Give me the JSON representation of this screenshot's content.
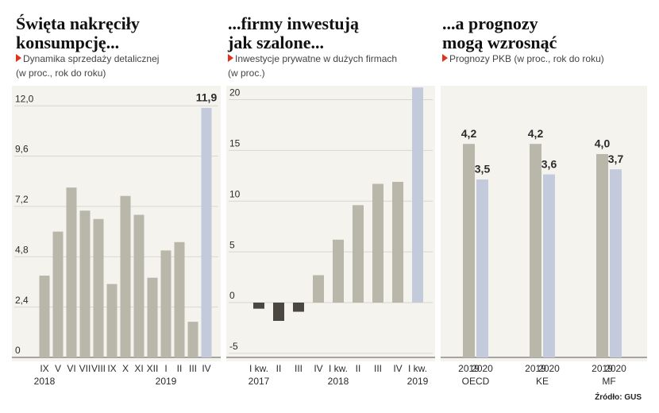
{
  "chart_data": [
    {
      "type": "bar",
      "title": "Święta nakręciły konsumpcję...",
      "subtitle": "Dynamika sprzedaży detalicznej",
      "unit": "(w proc., rok do roku)",
      "categories": [
        "IX",
        "V",
        "VI",
        "VII",
        "VIII",
        "IX",
        "X",
        "XI",
        "XII",
        "I",
        "II",
        "III",
        "IV"
      ],
      "years": [
        "2018",
        null,
        null,
        null,
        null,
        null,
        null,
        null,
        null,
        "2019",
        null,
        null,
        null
      ],
      "values": [
        3.9,
        6.0,
        8.1,
        7.0,
        6.6,
        3.5,
        7.7,
        6.8,
        3.8,
        5.1,
        5.5,
        1.7,
        11.9
      ],
      "value_labels": [
        null,
        null,
        null,
        null,
        null,
        null,
        null,
        null,
        null,
        null,
        null,
        null,
        "11,9"
      ],
      "colors": [
        "#b8b7a9",
        "#b8b7a9",
        "#b8b7a9",
        "#b8b7a9",
        "#b8b7a9",
        "#b8b7a9",
        "#b8b7a9",
        "#b8b7a9",
        "#b8b7a9",
        "#b8b7a9",
        "#b8b7a9",
        "#b8b7a9",
        "#c3cadc"
      ],
      "ylim": [
        0,
        12.5
      ],
      "yticks": [
        0,
        {
          "value": 2.4,
          "label": "2,4"
        },
        {
          "value": 4.8,
          "label": "4,8"
        },
        {
          "value": 7.2,
          "label": "7,2"
        },
        {
          "value": 9.6,
          "label": "9,6"
        },
        {
          "value": 12.0,
          "label": "12,0"
        }
      ],
      "grid": true
    },
    {
      "type": "bar",
      "title": "...firmy inwestują jak szalone...",
      "subtitle": "Inwestycje prywatne w dużych firmach",
      "unit": "(w proc.)",
      "categories": [
        "I kw.",
        "II",
        "III",
        "IV",
        "I kw.",
        "II",
        "III",
        "IV",
        "I kw."
      ],
      "years": [
        "2017",
        null,
        null,
        null,
        "2018",
        null,
        null,
        null,
        "2019"
      ],
      "values": [
        -0.6,
        -1.8,
        -0.9,
        2.7,
        6.2,
        9.6,
        11.7,
        11.9,
        21.2
      ],
      "colors": [
        "#4a4640",
        "#4a4640",
        "#4a4640",
        "#b8b7a9",
        "#b8b7a9",
        "#b8b7a9",
        "#b8b7a9",
        "#b8b7a9",
        "#c3cadc"
      ],
      "ylim": [
        -5.4,
        21.6
      ],
      "yticks": [
        -5,
        0,
        5,
        10,
        15,
        20
      ],
      "grid": true
    },
    {
      "type": "bar",
      "title": "...a prognozy mogą wzrosnąć",
      "subtitle": "Prognozy PKB (w proc., rok do roku)",
      "categories": [
        "OECD",
        "KE",
        "MF"
      ],
      "series": [
        {
          "name": "2019",
          "color": "#b8b7a9",
          "values": [
            4.2,
            4.2,
            4.0
          ],
          "value_labels": [
            "4,2",
            "4,2",
            "4,0"
          ]
        },
        {
          "name": "2020",
          "color": "#c3cadc",
          "values": [
            3.5,
            3.6,
            3.7
          ],
          "value_labels": [
            "3,5",
            "3,6",
            "3,7"
          ]
        }
      ]
    }
  ],
  "source": "Źródło: GUS"
}
